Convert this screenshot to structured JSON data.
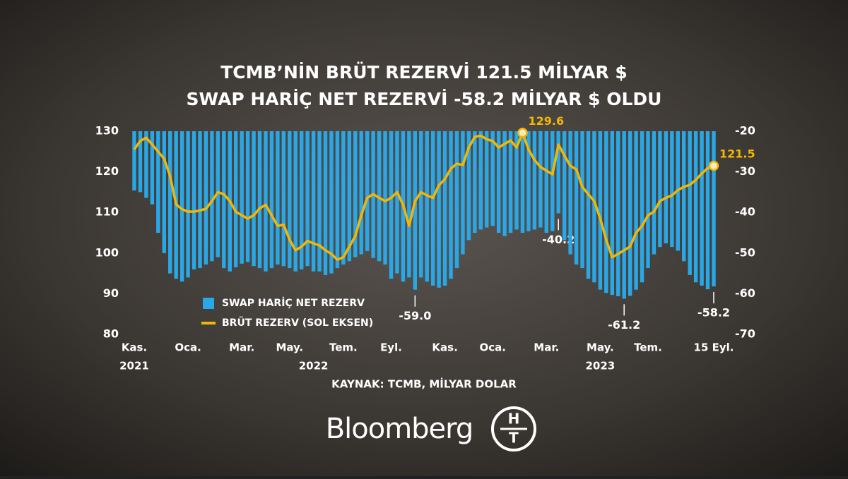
{
  "chart_data": {
    "type": "bar-line",
    "title": [
      "TCMB’NİN BRÜT REZERVİ 121.5 MİLYAR $",
      "SWAP HARİÇ NET REZERVİ -58.2 MİLYAR $ OLDU"
    ],
    "source": "KAYNAK: TCMB, MİLYAR DOLAR",
    "categories": [
      "Kas.",
      null,
      null,
      null,
      null,
      null,
      null,
      null,
      null,
      "Oca.",
      null,
      null,
      null,
      null,
      null,
      null,
      null,
      null,
      "Mar.",
      null,
      null,
      null,
      null,
      null,
      null,
      null,
      "May.",
      null,
      null,
      null,
      null,
      null,
      null,
      null,
      null,
      "Tem.",
      null,
      null,
      null,
      null,
      null,
      null,
      null,
      "Eyl.",
      null,
      null,
      null,
      null,
      null,
      null,
      null,
      null,
      "Kas.",
      null,
      null,
      null,
      null,
      null,
      null,
      null,
      "Oca.",
      null,
      null,
      null,
      null,
      null,
      null,
      null,
      null,
      "Mar.",
      null,
      null,
      null,
      null,
      null,
      null,
      null,
      null,
      "May.",
      null,
      null,
      null,
      null,
      null,
      null,
      null,
      "Tem.",
      null,
      null,
      null,
      null,
      null,
      null,
      null,
      null,
      null,
      null,
      "15 Eyl."
    ],
    "year_labels": [
      {
        "label": "2021",
        "index": 0
      },
      {
        "label": "2022",
        "index": 30
      },
      {
        "label": "2023",
        "index": 78
      }
    ],
    "ylim": [
      80,
      130
    ],
    "yticks": [
      80,
      90,
      100,
      110,
      120,
      130
    ],
    "y2lim": [
      -70,
      -20
    ],
    "y2ticks": [
      -70,
      -60,
      -50,
      -40,
      -30,
      -20
    ],
    "series": [
      {
        "name": "SWAP HARİÇ NET REZERV",
        "type": "bar",
        "axis": "y2",
        "color": "#2aa7e6",
        "values": [
          -34.6,
          -35,
          -36.4,
          -38,
          -45,
          -50,
          -55,
          -56.3,
          -57,
          -56,
          -54,
          -53.7,
          -52.8,
          -52,
          -51,
          -53.7,
          -54.5,
          -53.5,
          -52.6,
          -52.2,
          -53.2,
          -53.7,
          -54.5,
          -53.7,
          -52.8,
          -53.2,
          -53.7,
          -54.5,
          -54,
          -53.2,
          -54.5,
          -54.5,
          -55.4,
          -55,
          -53.7,
          -52.8,
          -52,
          -51,
          -50.3,
          -49.5,
          -51.2,
          -52,
          -52.8,
          -56.3,
          -55,
          -57,
          -56,
          -59,
          -56,
          -57,
          -58,
          -58.5,
          -58,
          -56.3,
          -53.7,
          -50.3,
          -46.8,
          -45,
          -44.2,
          -43.7,
          -43.3,
          -45,
          -45.8,
          -45,
          -44.2,
          -45,
          -44.6,
          -44.2,
          -43.7,
          -45,
          -44.6,
          -40.2,
          -46.8,
          -50.3,
          -52.8,
          -53.7,
          -56.3,
          -57.2,
          -59,
          -59.8,
          -60.3,
          -60.6,
          -61.2,
          -60.5,
          -59,
          -57.2,
          -53.7,
          -50.3,
          -48.5,
          -47.6,
          -48.5,
          -49.4,
          -52,
          -55.4,
          -57.2,
          -58,
          -58.9,
          -58.2
        ],
        "value_labels": [
          null,
          null,
          null,
          null,
          null,
          null,
          null,
          null,
          null,
          null,
          null,
          null,
          null,
          null,
          null,
          null,
          null,
          null,
          null,
          null,
          null,
          null,
          null,
          null,
          null,
          null,
          null,
          null,
          null,
          null,
          null,
          null,
          null,
          null,
          null,
          null,
          null,
          null,
          null,
          null,
          null,
          null,
          null,
          null,
          null,
          null,
          null,
          "-59.0",
          null,
          null,
          null,
          null,
          null,
          null,
          null,
          null,
          null,
          null,
          null,
          null,
          null,
          null,
          null,
          null,
          null,
          null,
          null,
          null,
          null,
          null,
          null,
          "-40.2",
          null,
          null,
          null,
          null,
          null,
          null,
          null,
          null,
          null,
          null,
          "-61.2",
          null,
          null,
          null,
          null,
          null,
          null,
          null,
          null,
          null,
          null,
          null,
          null,
          null,
          null,
          "-58.2"
        ]
      },
      {
        "name": "BRÜT REZERV (SOL EKSEN)",
        "type": "line",
        "color": "#f2b705",
        "values": [
          125.5,
          127.6,
          128.4,
          126.7,
          125,
          123.2,
          119,
          112,
          110.8,
          110.2,
          110.2,
          110.5,
          110.9,
          112.8,
          115,
          114.5,
          112.8,
          110.2,
          109.3,
          108.5,
          109.3,
          111,
          111.9,
          109.3,
          106.7,
          107,
          103.3,
          100.7,
          101.6,
          103,
          102.4,
          101.9,
          100.7,
          99.8,
          98.4,
          99,
          101.6,
          104.2,
          109.3,
          113.6,
          114.5,
          113.6,
          112.8,
          113.6,
          115,
          111.9,
          106.7,
          112.8,
          115,
          114.2,
          113.6,
          116.7,
          118.2,
          120.8,
          122,
          121.7,
          126,
          128.6,
          128.9,
          128,
          127.6,
          126,
          126.9,
          127.7,
          126,
          129.6,
          125.5,
          122.9,
          121.2,
          120.3,
          119.4,
          126.7,
          124,
          121.5,
          120.6,
          116.3,
          114.5,
          112.8,
          108.5,
          103.3,
          99,
          99.8,
          100.7,
          101.6,
          105,
          106.7,
          109.3,
          110.2,
          112.8,
          113.6,
          114.2,
          115.5,
          116.3,
          116.8,
          118,
          119.6,
          120.9,
          121.5
        ],
        "value_labels": [
          null,
          null,
          null,
          null,
          null,
          null,
          null,
          null,
          null,
          null,
          null,
          null,
          null,
          null,
          null,
          null,
          null,
          null,
          null,
          null,
          null,
          null,
          null,
          null,
          null,
          null,
          null,
          null,
          null,
          null,
          null,
          null,
          null,
          null,
          null,
          null,
          null,
          null,
          null,
          null,
          null,
          null,
          null,
          null,
          null,
          null,
          null,
          null,
          null,
          null,
          null,
          null,
          null,
          null,
          null,
          null,
          null,
          null,
          null,
          null,
          null,
          null,
          null,
          null,
          null,
          "129.6",
          null,
          null,
          null,
          null,
          null,
          null,
          null,
          null,
          null,
          null,
          null,
          null,
          null,
          null,
          null,
          null,
          null,
          null,
          null,
          null,
          null,
          null,
          null,
          null,
          null,
          null,
          null,
          null,
          null,
          null,
          null,
          "121.5"
        ]
      }
    ],
    "logo": {
      "name": "Bloomberg",
      "mark_top": "H",
      "mark_bottom": "T"
    }
  }
}
